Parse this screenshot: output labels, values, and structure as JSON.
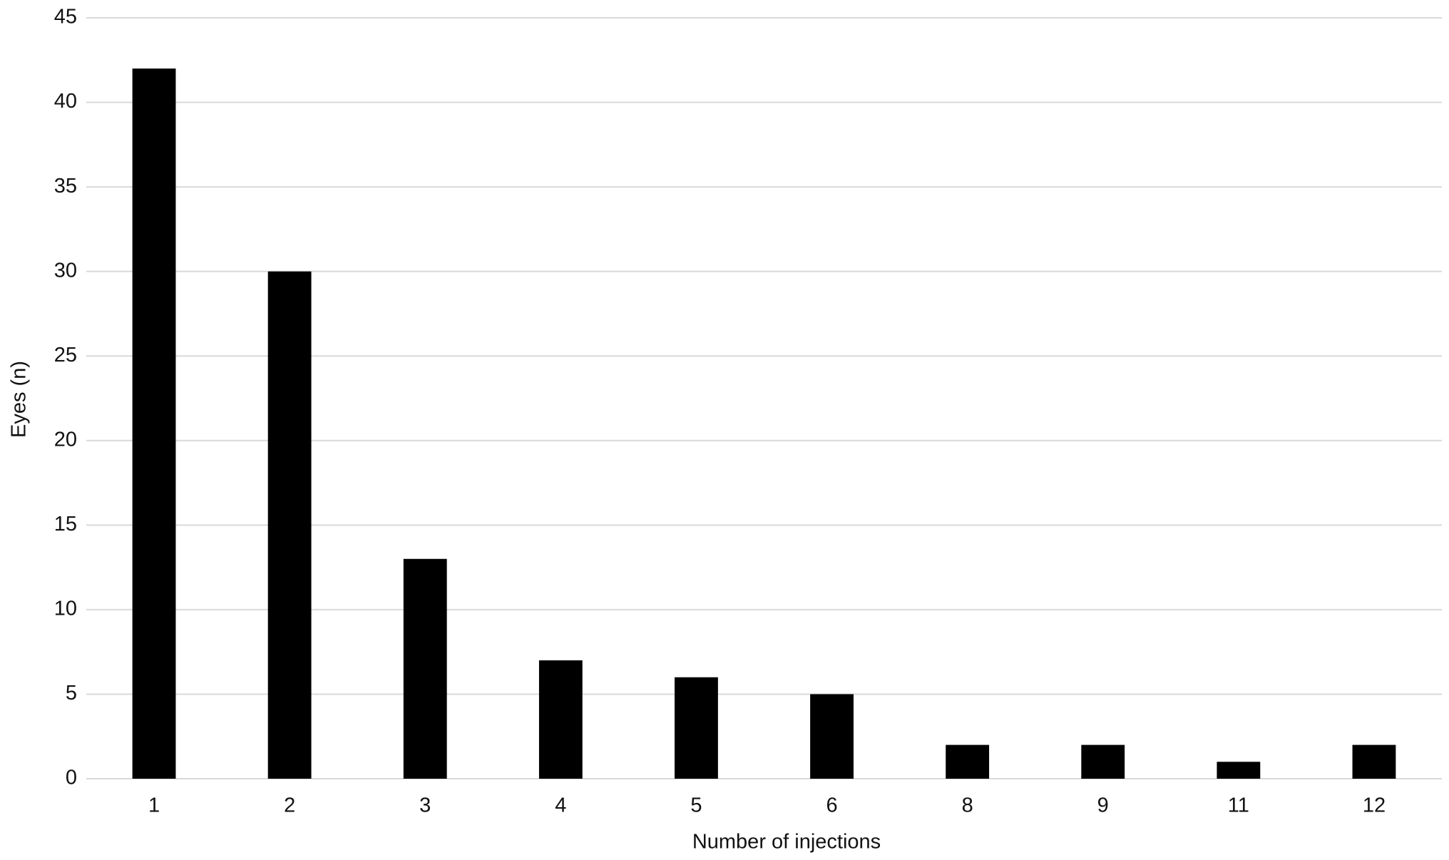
{
  "chart_data": {
    "type": "bar",
    "x_label": "Number of injections",
    "y_label": "Eyes (n)",
    "categories": [
      "1",
      "2",
      "3",
      "4",
      "5",
      "6",
      "8",
      "9",
      "11",
      "12"
    ],
    "values": [
      42,
      30,
      13,
      7,
      6,
      5,
      2,
      2,
      1,
      2
    ],
    "color": "#000000",
    "ylim": [
      0,
      45
    ],
    "yticks": [
      0,
      5,
      10,
      15,
      20,
      25,
      30,
      35,
      40,
      45
    ],
    "grid": true
  }
}
